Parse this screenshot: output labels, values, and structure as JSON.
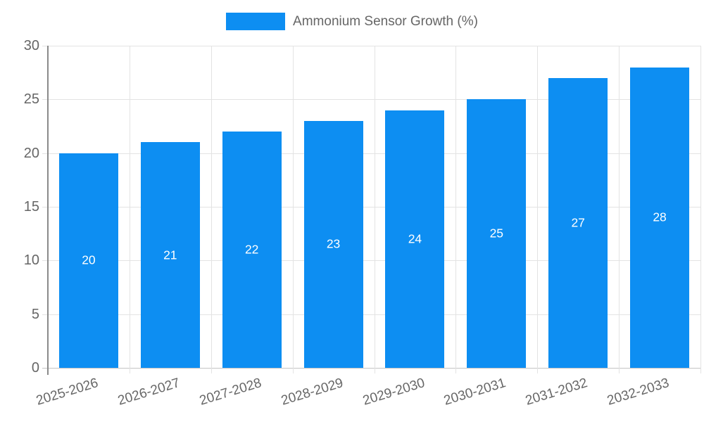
{
  "chart_data": {
    "type": "bar",
    "title": "",
    "legend": {
      "label": "Ammonium Sensor Growth (%)",
      "position": "top-center"
    },
    "categories": [
      "2025-2026",
      "2026-2027",
      "2027-2028",
      "2028-2029",
      "2029-2030",
      "2030-2031",
      "2031-2032",
      "2032-2033"
    ],
    "series": [
      {
        "name": "Ammonium Sensor Growth (%)",
        "values": [
          20,
          21,
          22,
          23,
          24,
          25,
          27,
          28
        ]
      }
    ],
    "bar_value_labels": [
      "20",
      "21",
      "22",
      "23",
      "24",
      "25",
      "27",
      "28"
    ],
    "bar_label_position": "inside-middle",
    "xlabel": "",
    "ylabel": "",
    "ylim": [
      0,
      30
    ],
    "yticks": [
      0,
      5,
      10,
      15,
      20,
      25,
      30
    ],
    "grid": true,
    "colors": {
      "bar": "#0d8ef2",
      "bar_label": "#ffffff",
      "axis_text": "#666666",
      "grid_line": "#e3e3e3",
      "baseline": "#c4c4c4",
      "axis_line": "#8a8a8a",
      "background": "#ffffff"
    }
  }
}
